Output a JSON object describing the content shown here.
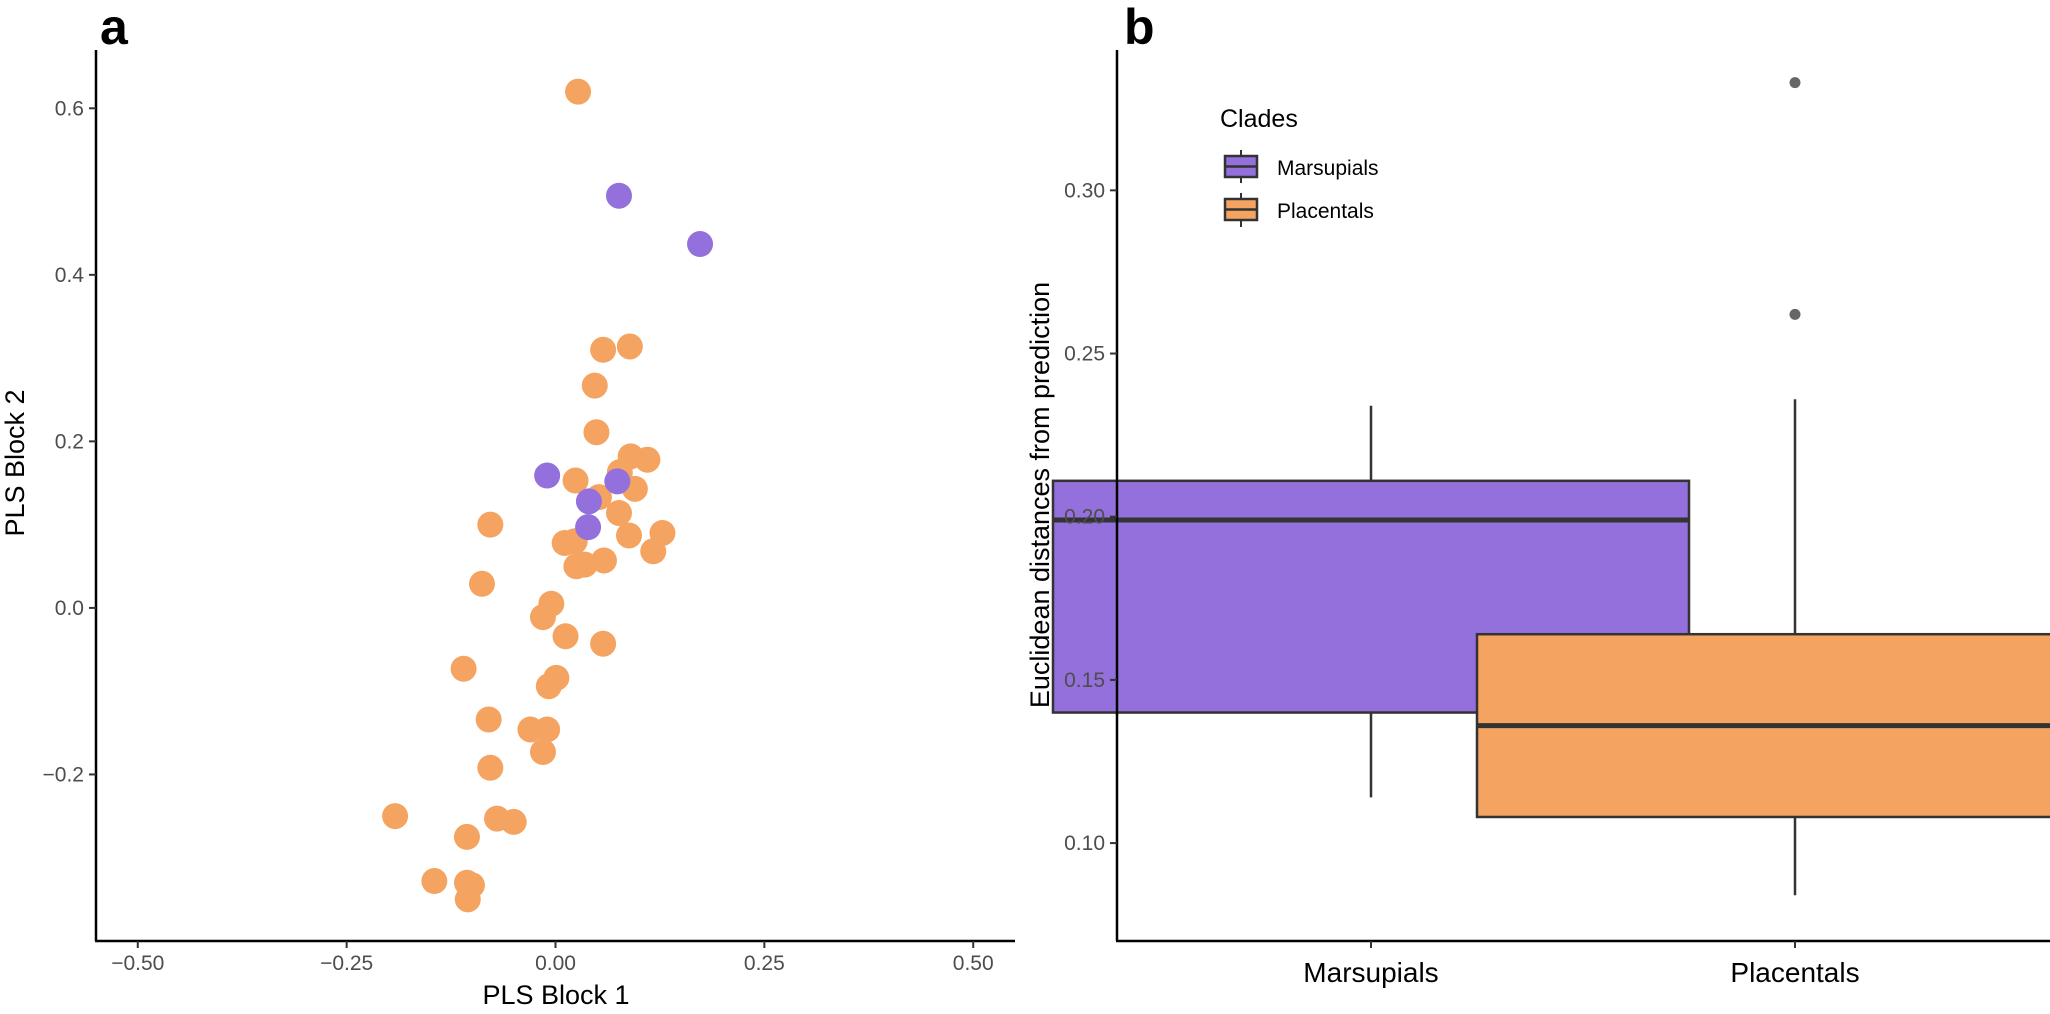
{
  "colors": {
    "marsupials": "#9370DB",
    "placentals": "#F4A460",
    "box_outline": "#333333",
    "outlier": "#666666"
  },
  "chart_data": [
    {
      "panel": "a",
      "type": "scatter",
      "xlabel": "PLS Block 1",
      "ylabel": "PLS Block 2",
      "xlim": [
        -0.55,
        0.55
      ],
      "ylim": [
        -0.4,
        0.67
      ],
      "xticks": [
        -0.5,
        -0.25,
        0,
        0.25,
        0.5
      ],
      "xtick_labels": [
        "−0.50",
        "−0.25",
        "0.00",
        "0.25",
        "0.50"
      ],
      "yticks": [
        -0.2,
        0,
        0.2,
        0.4,
        0.6
      ],
      "ytick_labels": [
        "−0.2",
        "0.0",
        "0.2",
        "0.4",
        "0.6"
      ],
      "series": [
        {
          "name": "Placentals",
          "x": [
            0.027,
            0.057,
            0.089,
            0.047,
            0.049,
            0.09,
            0.11,
            0.024,
            0.077,
            0.095,
            0.052,
            0.076,
            0.088,
            0.128,
            0.011,
            0.023,
            0.117,
            0.035,
            0.058,
            -0.078,
            -0.088,
            0.025,
            -0.005,
            -0.015,
            0.012,
            0.057,
            -0.008,
            0.001,
            -0.11,
            -0.08,
            -0.03,
            -0.01,
            -0.015,
            -0.078,
            -0.192,
            -0.106,
            -0.07,
            -0.05,
            -0.145,
            -0.106,
            -0.1,
            -0.105
          ],
          "y": [
            0.62,
            0.31,
            0.314,
            0.267,
            0.211,
            0.182,
            0.178,
            0.153,
            0.163,
            0.143,
            0.133,
            0.114,
            0.087,
            0.09,
            0.078,
            0.08,
            0.068,
            0.052,
            0.057,
            0.1,
            0.029,
            0.05,
            0.005,
            -0.011,
            -0.034,
            -0.043,
            -0.094,
            -0.084,
            -0.073,
            -0.134,
            -0.146,
            -0.146,
            -0.173,
            -0.192,
            -0.25,
            -0.275,
            -0.253,
            -0.257,
            -0.328,
            -0.33,
            -0.333,
            -0.35
          ]
        },
        {
          "name": "Marsupials",
          "x": [
            0.076,
            0.173,
            -0.01,
            0.074,
            0.04,
            0.039
          ],
          "y": [
            0.495,
            0.437,
            0.159,
            0.152,
            0.128,
            0.097
          ]
        }
      ]
    },
    {
      "panel": "b",
      "type": "box",
      "categories": [
        "Marsupials",
        "Placentals"
      ],
      "ylabel": "Euclidean distances from prediction",
      "xlabel": "",
      "ylim": [
        0.07,
        0.343
      ],
      "yticks": [
        0.1,
        0.15,
        0.2,
        0.25,
        0.3
      ],
      "ytick_labels": [
        "0.10",
        "0.15",
        "0.20",
        "0.25",
        "0.30"
      ],
      "boxes": [
        {
          "name": "Marsupials",
          "lower_whisker": 0.114,
          "q1": 0.14,
          "median": 0.199,
          "q3": 0.211,
          "upper_whisker": 0.234,
          "outliers": []
        },
        {
          "name": "Placentals",
          "lower_whisker": 0.084,
          "q1": 0.108,
          "median": 0.136,
          "q3": 0.164,
          "upper_whisker": 0.236,
          "outliers": [
            0.333,
            0.262
          ]
        }
      ],
      "legend": {
        "title": "Clades",
        "entries": [
          "Marsupials",
          "Placentals"
        ],
        "position": "top-left"
      }
    }
  ]
}
